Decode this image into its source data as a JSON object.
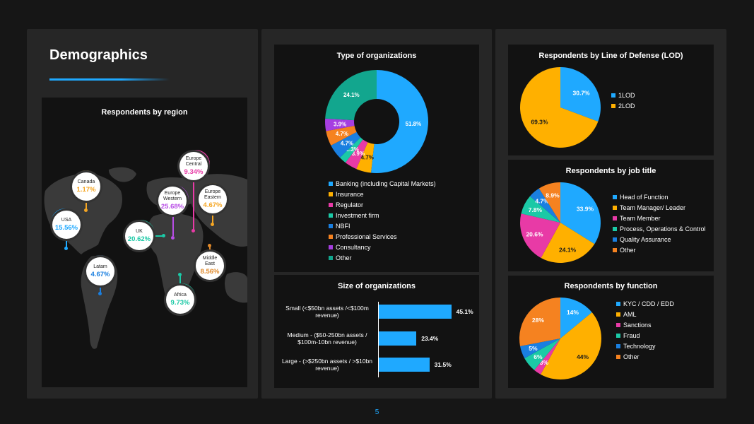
{
  "page": {
    "title": "Demographics",
    "page_number": "5"
  },
  "colors": {
    "background": "#161616",
    "panel": "#262626",
    "card": "#121212",
    "accent": "#1fa9ff"
  },
  "chart_data": [
    {
      "id": "region",
      "type": "map-pins",
      "title": "Respondents by region",
      "pins": [
        {
          "name": "Canada",
          "value": "1.17%",
          "color": "#f5a623"
        },
        {
          "name": "USA",
          "value": "15.56%",
          "color": "#1fa9ff"
        },
        {
          "name": "Latam",
          "value": "4.67%",
          "color": "#1a7fe0"
        },
        {
          "name": "UK",
          "value": "20.62%",
          "color": "#1bc9a6"
        },
        {
          "name": "Europe Western",
          "value": "25.68%",
          "color": "#b84de6"
        },
        {
          "name": "Europe Central",
          "value": "9.34%",
          "color": "#e83aa6"
        },
        {
          "name": "Europe Eastern",
          "value": "4.67%",
          "color": "#f5a623"
        },
        {
          "name": "Middle East",
          "value": "8.56%",
          "color": "#e0892a"
        },
        {
          "name": "Africa",
          "value": "9.73%",
          "color": "#1bc9a6"
        }
      ]
    },
    {
      "id": "orgtype",
      "type": "pie",
      "donut": true,
      "title": "Type of organizations",
      "labels": [
        "Banking (including Capital Markets)",
        "Insurance",
        "Regulator",
        "Investment firm",
        "NBFI",
        "Professional Services",
        "Consultancy",
        "Other"
      ],
      "values": [
        51.8,
        4.7,
        3.9,
        2.3,
        4.7,
        4.7,
        3.9,
        24.1
      ],
      "value_labels": [
        "51.8%",
        "4.7%",
        "3.9%",
        "2.3%",
        "4.7%",
        "4.7%",
        "3.9%",
        "24.1%"
      ],
      "colors": [
        "#1fa9ff",
        "#ffb000",
        "#e83aa6",
        "#1bc9a6",
        "#1a7fe0",
        "#f58220",
        "#a63ee0",
        "#12a68e"
      ]
    },
    {
      "id": "orgsize",
      "type": "bar",
      "orientation": "horizontal",
      "title": "Size of organizations",
      "categories": [
        "Small (<$50bn assets /<$100m revenue)",
        "Medium - ($50-250bn assets / $100m-10bn revenue)",
        "Large - (>$250bn assets / >$10bn revenue)"
      ],
      "values": [
        45.1,
        23.4,
        31.5
      ],
      "value_labels": [
        "45.1%",
        "23.4%",
        "31.5%"
      ],
      "xlim": [
        0,
        50
      ],
      "color": "#1fa9ff"
    },
    {
      "id": "lod",
      "type": "pie",
      "title": "Respondents by Line of Defense (LOD)",
      "labels": [
        "1LOD",
        "2LOD"
      ],
      "values": [
        30.7,
        69.3
      ],
      "value_labels": [
        "30.7%",
        "69.3%"
      ],
      "colors": [
        "#1fa9ff",
        "#ffb000"
      ]
    },
    {
      "id": "jobtitle",
      "type": "pie",
      "title": "Respondents by job title",
      "labels": [
        "Head of Function",
        "Team Manager/ Leader",
        "Team Member",
        "Process, Operations & Control",
        "Quality Assurance",
        "Other"
      ],
      "values": [
        33.9,
        24.1,
        20.6,
        7.8,
        4.7,
        8.9
      ],
      "value_labels": [
        "33.9%",
        "24.1%",
        "20.6%",
        "7.8%",
        "4.7%",
        "8.9%"
      ],
      "colors": [
        "#1fa9ff",
        "#ffb000",
        "#e83aa6",
        "#1bc9a6",
        "#1a7fe0",
        "#f58220"
      ]
    },
    {
      "id": "function",
      "type": "pie",
      "title": "Respondents by function",
      "labels": [
        "KYC / CDD / EDD",
        "AML",
        "Sanctions",
        "Fraud",
        "Technology",
        "Other"
      ],
      "values": [
        14,
        44,
        3,
        6,
        5,
        28
      ],
      "value_labels": [
        "14%",
        "44%",
        "3%",
        "6%",
        "5%",
        "28%"
      ],
      "colors": [
        "#1fa9ff",
        "#ffb000",
        "#e83aa6",
        "#1bc9a6",
        "#1a7fe0",
        "#f58220"
      ]
    }
  ]
}
